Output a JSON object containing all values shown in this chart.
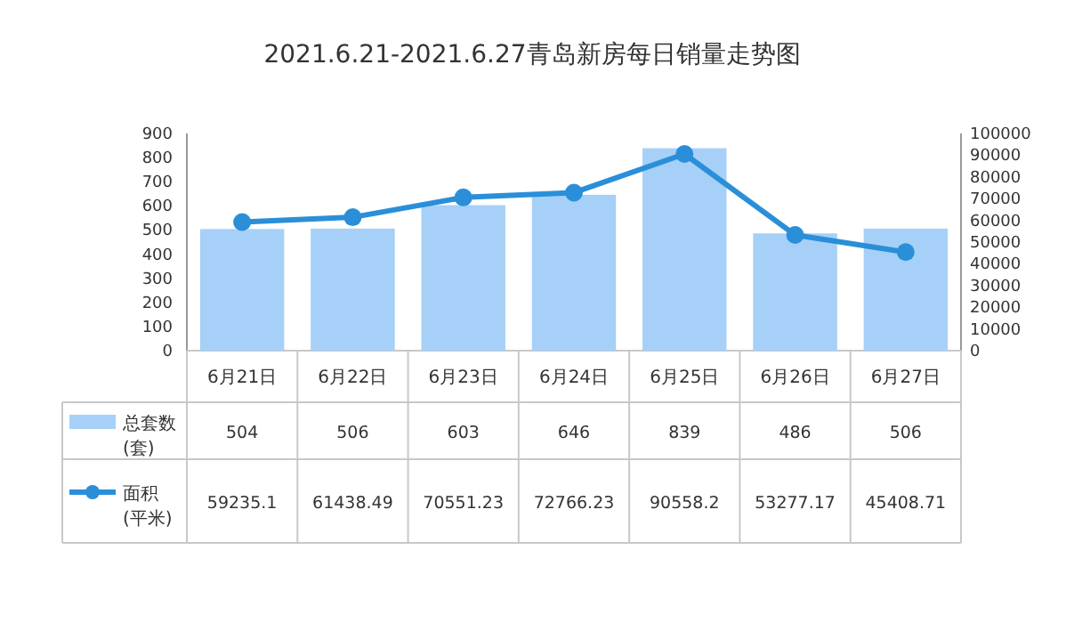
{
  "chart_data": {
    "type": "bar",
    "title": "2021.6.21-2021.6.27青岛新房每日销量走势图",
    "categories": [
      "6月21日",
      "6月22日",
      "6月23日",
      "6月24日",
      "6月25日",
      "6月26日",
      "6月27日"
    ],
    "series": [
      {
        "name": "总套数(套)",
        "color": "#a6d0f7",
        "values": [
          504,
          506,
          603,
          646,
          839,
          486,
          506
        ]
      },
      {
        "name": "面积(平米)",
        "type": "line",
        "axis": "y2",
        "color": "#2a8fd8",
        "values": [
          59235.1,
          61438.49,
          70551.23,
          72766.23,
          90558.2,
          53277.17,
          45408.71
        ]
      }
    ],
    "ylim": [
      0,
      900
    ],
    "yticks": [
      0,
      100,
      200,
      300,
      400,
      500,
      600,
      700,
      800,
      900
    ],
    "y2lim": [
      0,
      100000
    ],
    "y2ticks": [
      0,
      10000,
      20000,
      30000,
      40000,
      50000,
      60000,
      70000,
      80000,
      90000,
      100000
    ],
    "data_labels": true,
    "legend": "left",
    "grid": false,
    "marker": "circle"
  }
}
